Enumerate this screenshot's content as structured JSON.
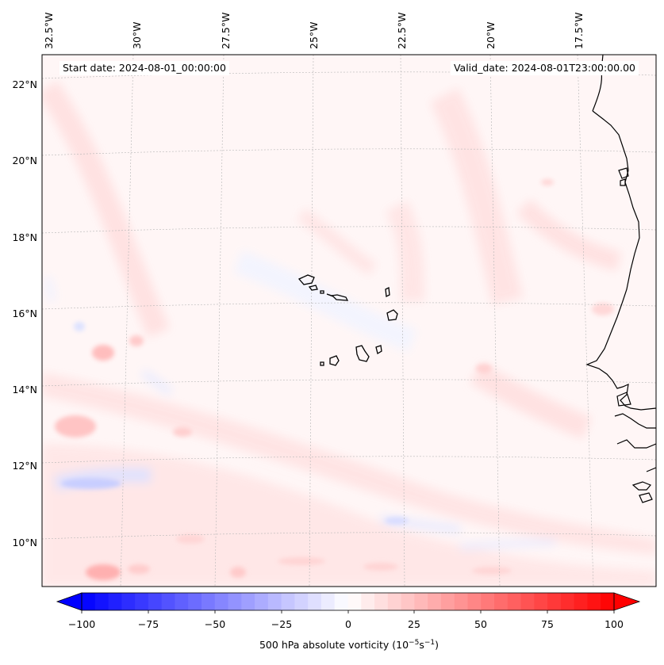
{
  "header": {
    "start_date": "Start date: 2024-08-01_00:00:00",
    "valid_date": "Valid_date: 2024-08-01T23:00:00.00"
  },
  "map": {
    "region": "Cabo Verde and West African coast",
    "longitude_labels": [
      "32.5°W",
      "30°W",
      "27.5°W",
      "25°W",
      "22.5°W",
      "20°W",
      "17.5°W"
    ],
    "latitude_labels": [
      "22°N",
      "20°N",
      "18°N",
      "16°N",
      "14°N",
      "12°N",
      "10°N"
    ]
  },
  "colorbar": {
    "label_text": "500 hPa absolute vorticity (10",
    "label_exp1": "−5",
    "label_mid": "s",
    "label_exp2": "−1",
    "label_close": ")",
    "ticks": [
      "−100",
      "−75",
      "−50",
      "−25",
      "0",
      "25",
      "50",
      "75",
      "100"
    ],
    "vmin": -100,
    "vmax": 100,
    "colors": {
      "negative": "#0000ff",
      "zero": "#ffffff",
      "positive": "#ff0000"
    }
  }
}
